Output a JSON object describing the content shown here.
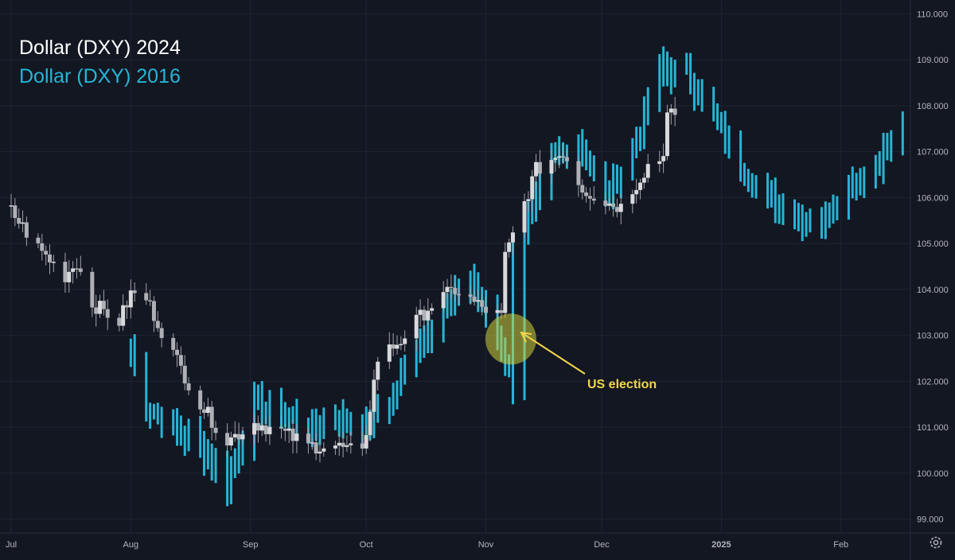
{
  "legend": {
    "line1": "Dollar (DXY) 2024",
    "line2": "Dollar (DXY) 2016",
    "line1_color": "#ffffff",
    "line2_color": "#26b5d6"
  },
  "annotation": {
    "label": "US election",
    "color": "#f2d54a"
  },
  "colors": {
    "background": "#131722",
    "grid": "#1f2433",
    "series_2016": "#26b5d6",
    "candle_up": "#d8d9dc",
    "candle_down": "#aeb0b6",
    "wick": "#9fa2a8",
    "axis_text": "#b2b5be",
    "highlight": "#cfd13a"
  },
  "chart_data": {
    "type": "ohlc_overlay",
    "title": "",
    "y_axis": {
      "ticks": [
        "99.000",
        "100.000",
        "101.000",
        "102.000",
        "103.000",
        "104.000",
        "105.000",
        "106.000",
        "107.000",
        "108.000",
        "109.000",
        "110.000"
      ],
      "range": [
        98.7,
        110.3
      ]
    },
    "x_axis": {
      "tick_labels": [
        "Jul",
        "Aug",
        "Sep",
        "Oct",
        "Nov",
        "Dec",
        "2025",
        "Feb"
      ],
      "range": [
        "2024-07-01",
        "2025-02-19"
      ]
    },
    "series": [
      {
        "name": "Dollar (DXY) 2024",
        "style": "candlestick",
        "points": [
          {
            "x": "2024-07-01",
            "y": 105.7
          },
          {
            "x": "2024-07-08",
            "y": 104.9
          },
          {
            "x": "2024-07-15",
            "y": 104.3
          },
          {
            "x": "2024-07-18",
            "y": 104.6
          },
          {
            "x": "2024-07-22",
            "y": 103.7
          },
          {
            "x": "2024-07-29",
            "y": 103.3
          },
          {
            "x": "2024-08-01",
            "y": 103.9
          },
          {
            "x": "2024-08-05",
            "y": 103.8
          },
          {
            "x": "2024-08-12",
            "y": 102.6
          },
          {
            "x": "2024-08-19",
            "y": 101.5
          },
          {
            "x": "2024-08-26",
            "y": 100.7
          },
          {
            "x": "2024-09-02",
            "y": 101.1
          },
          {
            "x": "2024-09-09",
            "y": 100.9
          },
          {
            "x": "2024-09-16",
            "y": 100.6
          },
          {
            "x": "2024-09-23",
            "y": 100.6
          },
          {
            "x": "2024-09-30",
            "y": 100.4
          },
          {
            "x": "2024-10-04",
            "y": 102.5
          },
          {
            "x": "2024-10-10",
            "y": 102.9
          },
          {
            "x": "2024-10-17",
            "y": 103.6
          },
          {
            "x": "2024-10-24",
            "y": 104.0
          },
          {
            "x": "2024-10-31",
            "y": 103.6
          },
          {
            "x": "2024-11-05",
            "y": 103.4
          },
          {
            "x": "2024-11-06",
            "y": 104.7
          },
          {
            "x": "2024-11-14",
            "y": 106.6
          },
          {
            "x": "2024-11-21",
            "y": 107.0
          },
          {
            "x": "2024-11-26",
            "y": 106.2
          },
          {
            "x": "2024-12-02",
            "y": 105.9
          },
          {
            "x": "2024-12-06",
            "y": 105.8
          },
          {
            "x": "2024-12-13",
            "y": 106.7
          },
          {
            "x": "2024-12-17",
            "y": 106.9
          },
          {
            "x": "2024-12-18",
            "y": 108.0
          },
          {
            "x": "2024-12-20",
            "y": 107.8
          }
        ]
      },
      {
        "name": "Dollar (DXY) 2016",
        "style": "ohlc_bars",
        "points": [
          {
            "x": "2024-08-01",
            "y": 102.7
          },
          {
            "x": "2024-08-05",
            "y": 101.5
          },
          {
            "x": "2024-08-12",
            "y": 101.0
          },
          {
            "x": "2024-08-19",
            "y": 100.6
          },
          {
            "x": "2024-08-26",
            "y": 99.8
          },
          {
            "x": "2024-09-02",
            "y": 101.5
          },
          {
            "x": "2024-09-09",
            "y": 101.3
          },
          {
            "x": "2024-09-16",
            "y": 101.0
          },
          {
            "x": "2024-09-23",
            "y": 101.2
          },
          {
            "x": "2024-09-30",
            "y": 101.0
          },
          {
            "x": "2024-10-07",
            "y": 101.5
          },
          {
            "x": "2024-10-14",
            "y": 102.8
          },
          {
            "x": "2024-10-21",
            "y": 103.6
          },
          {
            "x": "2024-10-28",
            "y": 104.2
          },
          {
            "x": "2024-11-04",
            "y": 103.0
          },
          {
            "x": "2024-11-08",
            "y": 102.0
          },
          {
            "x": "2024-11-11",
            "y": 105.3
          },
          {
            "x": "2024-11-18",
            "y": 106.8
          },
          {
            "x": "2024-11-25",
            "y": 107.2
          },
          {
            "x": "2024-12-02",
            "y": 106.0
          },
          {
            "x": "2024-12-09",
            "y": 107.0
          },
          {
            "x": "2024-12-16",
            "y": 108.8
          },
          {
            "x": "2024-12-23",
            "y": 108.7
          },
          {
            "x": "2024-12-30",
            "y": 107.8
          },
          {
            "x": "2025-01-06",
            "y": 106.7
          },
          {
            "x": "2025-01-13",
            "y": 106.0
          },
          {
            "x": "2025-01-20",
            "y": 105.6
          },
          {
            "x": "2025-01-27",
            "y": 105.5
          },
          {
            "x": "2025-02-03",
            "y": 106.3
          },
          {
            "x": "2025-02-10",
            "y": 106.7
          },
          {
            "x": "2025-02-17",
            "y": 107.5
          }
        ]
      }
    ],
    "annotations": [
      {
        "text": "US election",
        "points_to": {
          "x": "2024-11-05",
          "y": 103.3
        }
      }
    ],
    "grid": true,
    "legend_position": "top-left"
  }
}
